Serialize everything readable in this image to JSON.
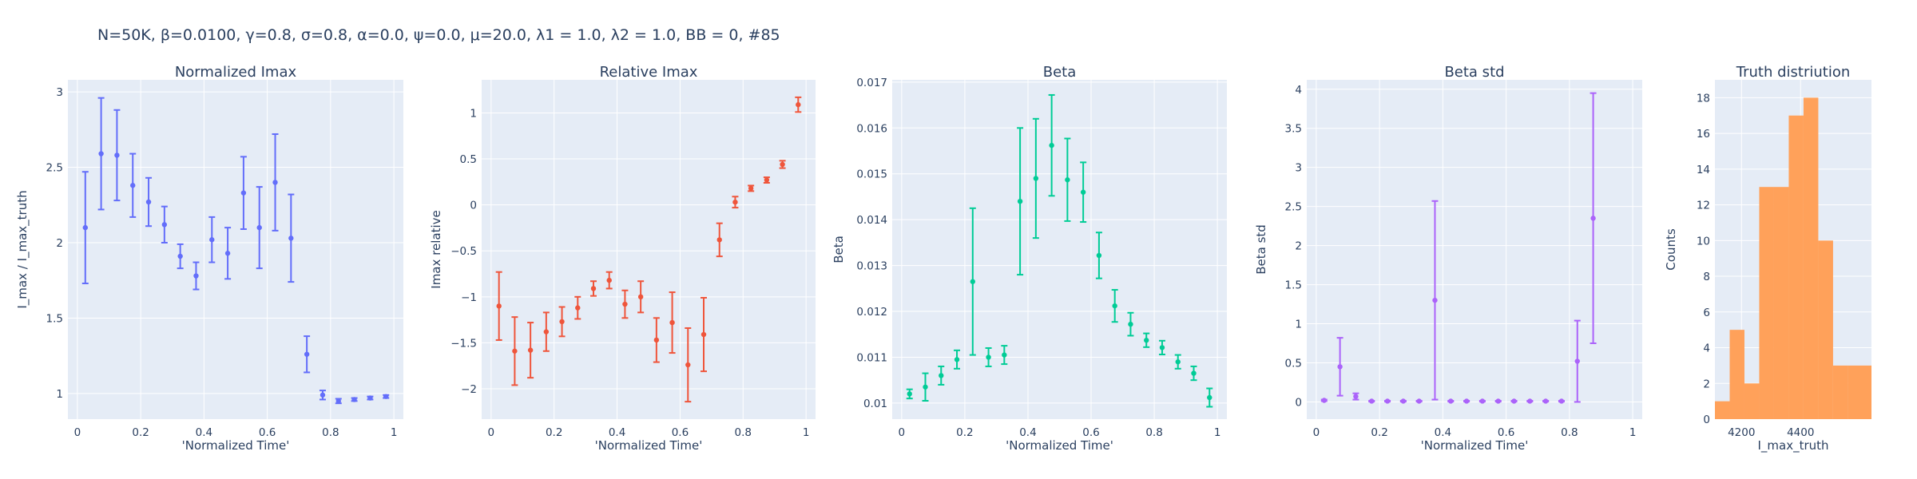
{
  "figure_title": "N=50K, β=0.0100, γ=0.8, σ=0.8,  α=0.0, ψ=0.0, μ=20.0, λ1 = 1.0, λ2 = 1.0, BB = 0, #85",
  "colors": {
    "plot_bg": "#e5ecf6",
    "grid": "#ffffff",
    "text": "#2a3f5f"
  },
  "chart_data": [
    {
      "type": "scatter",
      "title": "Normalized Imax",
      "xlabel": "'Normalized Time'",
      "ylabel": "I_max / I_max_truth",
      "color": "#636efa",
      "xlim": [
        -0.03,
        1.03
      ],
      "ylim": [
        0.83,
        3.08
      ],
      "xticks": [
        {
          "v": 0,
          "label": "0"
        },
        {
          "v": 0.2,
          "label": "0.2"
        },
        {
          "v": 0.4,
          "label": "0.4"
        },
        {
          "v": 0.6,
          "label": "0.6"
        },
        {
          "v": 0.8,
          "label": "0.8"
        },
        {
          "v": 1,
          "label": "1"
        }
      ],
      "yticks": [
        {
          "v": 1,
          "label": "1"
        },
        {
          "v": 1.5,
          "label": "1.5"
        },
        {
          "v": 2,
          "label": "2"
        },
        {
          "v": 2.5,
          "label": "2.5"
        },
        {
          "v": 3,
          "label": "3"
        }
      ],
      "series": [
        {
          "x": [
            0.025,
            0.075,
            0.125,
            0.175,
            0.225,
            0.275,
            0.325,
            0.375,
            0.425,
            0.475,
            0.525,
            0.575,
            0.625,
            0.675,
            0.725,
            0.775,
            0.825,
            0.875,
            0.925,
            0.975
          ],
          "y": [
            2.1,
            2.59,
            2.58,
            2.38,
            2.27,
            2.12,
            1.91,
            1.78,
            2.02,
            1.93,
            2.33,
            2.1,
            2.4,
            2.03,
            1.26,
            0.99,
            0.95,
            0.96,
            0.97,
            0.98
          ],
          "err": [
            0.37,
            0.37,
            0.3,
            0.21,
            0.16,
            0.12,
            0.08,
            0.09,
            0.15,
            0.17,
            0.24,
            0.27,
            0.32,
            0.29,
            0.12,
            0.03,
            0.015,
            0.01,
            0.01,
            0.01
          ]
        }
      ]
    },
    {
      "type": "scatter",
      "title": "Relative Imax",
      "xlabel": "'Normalized Time'",
      "ylabel": "Imax relative",
      "color": "#ef553b",
      "xlim": [
        -0.03,
        1.03
      ],
      "ylim": [
        -2.33,
        1.36
      ],
      "xticks": [
        {
          "v": 0,
          "label": "0"
        },
        {
          "v": 0.2,
          "label": "0.2"
        },
        {
          "v": 0.4,
          "label": "0.4"
        },
        {
          "v": 0.6,
          "label": "0.6"
        },
        {
          "v": 0.8,
          "label": "0.8"
        },
        {
          "v": 1,
          "label": "1"
        }
      ],
      "yticks": [
        {
          "v": -2,
          "label": "−2"
        },
        {
          "v": -1.5,
          "label": "−1.5"
        },
        {
          "v": -1,
          "label": "−1"
        },
        {
          "v": -0.5,
          "label": "−0.5"
        },
        {
          "v": 0,
          "label": "0"
        },
        {
          "v": 0.5,
          "label": "0.5"
        },
        {
          "v": 1,
          "label": "1"
        }
      ],
      "series": [
        {
          "x": [
            0.025,
            0.075,
            0.125,
            0.175,
            0.225,
            0.275,
            0.325,
            0.375,
            0.425,
            0.475,
            0.525,
            0.575,
            0.625,
            0.675,
            0.725,
            0.775,
            0.825,
            0.875,
            0.925,
            0.975
          ],
          "y": [
            -1.1,
            -1.59,
            -1.58,
            -1.38,
            -1.27,
            -1.12,
            -0.91,
            -0.82,
            -1.08,
            -1.0,
            -1.47,
            -1.28,
            -1.74,
            -1.41,
            -0.38,
            0.03,
            0.18,
            0.27,
            0.44,
            1.09
          ],
          "err": [
            0.37,
            0.37,
            0.3,
            0.21,
            0.16,
            0.12,
            0.08,
            0.09,
            0.15,
            0.17,
            0.24,
            0.33,
            0.4,
            0.4,
            0.18,
            0.06,
            0.03,
            0.03,
            0.04,
            0.08
          ]
        }
      ]
    },
    {
      "type": "scatter",
      "title": "Beta",
      "xlabel": "'Normalized Time'",
      "ylabel": "Beta",
      "color": "#00cc96",
      "xlim": [
        -0.03,
        1.03
      ],
      "ylim": [
        0.00965,
        0.01705
      ],
      "xticks": [
        {
          "v": 0,
          "label": "0"
        },
        {
          "v": 0.2,
          "label": "0.2"
        },
        {
          "v": 0.4,
          "label": "0.4"
        },
        {
          "v": 0.6,
          "label": "0.6"
        },
        {
          "v": 0.8,
          "label": "0.8"
        },
        {
          "v": 1,
          "label": "1"
        }
      ],
      "yticks": [
        {
          "v": 0.01,
          "label": "0.01"
        },
        {
          "v": 0.011,
          "label": "0.011"
        },
        {
          "v": 0.012,
          "label": "0.012"
        },
        {
          "v": 0.013,
          "label": "0.013"
        },
        {
          "v": 0.014,
          "label": "0.014"
        },
        {
          "v": 0.015,
          "label": "0.015"
        },
        {
          "v": 0.016,
          "label": "0.016"
        },
        {
          "v": 0.017,
          "label": "0.017"
        }
      ],
      "series": [
        {
          "x": [
            0.025,
            0.075,
            0.125,
            0.175,
            0.225,
            0.275,
            0.325,
            0.375,
            0.425,
            0.475,
            0.525,
            0.575,
            0.625,
            0.675,
            0.725,
            0.775,
            0.825,
            0.875,
            0.925,
            0.975
          ],
          "y": [
            0.0102,
            0.01035,
            0.0106,
            0.01095,
            0.01265,
            0.011,
            0.01105,
            0.0144,
            0.0149,
            0.01562,
            0.01487,
            0.0146,
            0.01322,
            0.01212,
            0.01172,
            0.01137,
            0.01121,
            0.0109,
            0.01065,
            0.01012
          ],
          "err": [
            0.0001,
            0.0003,
            0.0002,
            0.0002,
            0.0016,
            0.0002,
            0.0002,
            0.0016,
            0.0013,
            0.0011,
            0.0009,
            0.00065,
            0.0005,
            0.00035,
            0.00025,
            0.00015,
            0.00015,
            0.00015,
            0.00015,
            0.0002
          ]
        }
      ]
    },
    {
      "type": "scatter",
      "title": "Beta std",
      "xlabel": "'Normalized Time'",
      "ylabel": "Beta std",
      "color": "#ab63fa",
      "xlim": [
        -0.03,
        1.03
      ],
      "ylim": [
        -0.22,
        4.12
      ],
      "xticks": [
        {
          "v": 0,
          "label": "0"
        },
        {
          "v": 0.2,
          "label": "0.2"
        },
        {
          "v": 0.4,
          "label": "0.4"
        },
        {
          "v": 0.6,
          "label": "0.6"
        },
        {
          "v": 0.8,
          "label": "0.8"
        },
        {
          "v": 1,
          "label": "1"
        }
      ],
      "yticks": [
        {
          "v": 0,
          "label": "0"
        },
        {
          "v": 0.5,
          "label": "0.5"
        },
        {
          "v": 1,
          "label": "1"
        },
        {
          "v": 1.5,
          "label": "1.5"
        },
        {
          "v": 2,
          "label": "2"
        },
        {
          "v": 2.5,
          "label": "2.5"
        },
        {
          "v": 3,
          "label": "3"
        },
        {
          "v": 3.5,
          "label": "3.5"
        },
        {
          "v": 4,
          "label": "4"
        }
      ],
      "series": [
        {
          "x": [
            0.025,
            0.075,
            0.125,
            0.175,
            0.225,
            0.275,
            0.325,
            0.375,
            0.425,
            0.475,
            0.525,
            0.575,
            0.625,
            0.675,
            0.725,
            0.775,
            0.825,
            0.875
          ],
          "y": [
            0.02,
            0.45,
            0.07,
            0.01,
            0.01,
            0.01,
            0.01,
            1.3,
            0.01,
            0.01,
            0.01,
            0.01,
            0.01,
            0.01,
            0.01,
            0.01,
            0.52,
            2.35
          ],
          "err": [
            0.01,
            0.37,
            0.04,
            0.005,
            0.005,
            0.005,
            0.005,
            1.27,
            0.005,
            0.005,
            0.005,
            0.005,
            0.005,
            0.005,
            0.005,
            0.005,
            0.52,
            1.6
          ]
        }
      ]
    },
    {
      "type": "bar",
      "title": "Truth distriution",
      "xlabel": "I_max_truth",
      "ylabel": "Counts",
      "color": "#ffa15a",
      "xlim": [
        4110,
        4640
      ],
      "ylim": [
        0,
        19
      ],
      "xticks": [
        {
          "v": 4200,
          "label": "4200"
        },
        {
          "v": 4400,
          "label": "4400"
        }
      ],
      "yticks": [
        {
          "v": 0,
          "label": "0"
        },
        {
          "v": 2,
          "label": "2"
        },
        {
          "v": 4,
          "label": "4"
        },
        {
          "v": 6,
          "label": "6"
        },
        {
          "v": 8,
          "label": "8"
        },
        {
          "v": 10,
          "label": "10"
        },
        {
          "v": 12,
          "label": "12"
        },
        {
          "v": 14,
          "label": "14"
        },
        {
          "v": 16,
          "label": "16"
        },
        {
          "v": 18,
          "label": "18"
        }
      ],
      "bins": [
        {
          "x0": 4110,
          "x1": 4160,
          "count": 1
        },
        {
          "x0": 4160,
          "x1": 4210,
          "count": 5
        },
        {
          "x0": 4210,
          "x1": 4260,
          "count": 2
        },
        {
          "x0": 4260,
          "x1": 4310,
          "count": 13
        },
        {
          "x0": 4310,
          "x1": 4360,
          "count": 13
        },
        {
          "x0": 4360,
          "x1": 4410,
          "count": 17
        },
        {
          "x0": 4410,
          "x1": 4460,
          "count": 18
        },
        {
          "x0": 4460,
          "x1": 4510,
          "count": 10
        },
        {
          "x0": 4510,
          "x1": 4560,
          "count": 3
        },
        {
          "x0": 4560,
          "x1": 4640,
          "count": 3
        }
      ]
    }
  ]
}
